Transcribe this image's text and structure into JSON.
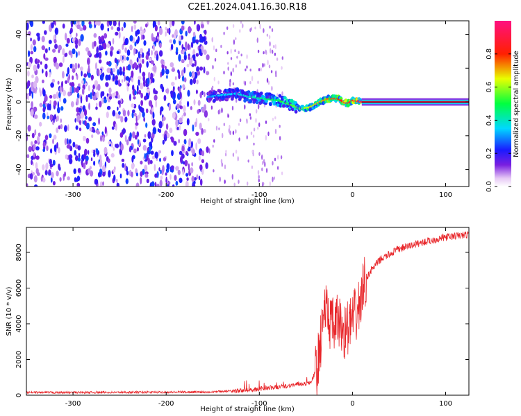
{
  "title": "C2E1.2024.041.16.30.R18",
  "colors": {
    "line": "#e8262a",
    "noise": "#6a1bd6",
    "axis": "#000000"
  },
  "chart_data": [
    {
      "type": "heatmap",
      "title": "C2E1.2024.041.16.30.R18",
      "xlabel": "Height of straight line (km)",
      "ylabel": "Frequency (Hz)",
      "xlim": [
        -350,
        125
      ],
      "ylim": [
        -50,
        48
      ],
      "xticks": [
        -300,
        -200,
        -100,
        0,
        100
      ],
      "yticks": [
        -40,
        -20,
        0,
        20,
        40
      ],
      "colorbar": {
        "label": "Normalized spectral amplitude",
        "range": [
          0,
          1
        ],
        "ticks": [
          "0.0",
          "0.2",
          "0.4",
          "0.6",
          "0.8"
        ],
        "colormap": "white-violet-blue-cyan-green-yellow-red-magenta"
      },
      "signal_track": {
        "x": [
          -155,
          -140,
          -125,
          -110,
          -95,
          -80,
          -65,
          -55,
          -45,
          -35,
          -25,
          -15,
          -10,
          -5,
          0,
          10,
          125
        ],
        "freq": [
          3,
          4,
          5,
          3,
          2,
          1,
          -2,
          -4,
          -3,
          0,
          2,
          2,
          0,
          -1,
          1,
          0,
          0
        ],
        "amplitude": [
          0.3,
          0.35,
          0.35,
          0.4,
          0.45,
          0.5,
          0.55,
          0.6,
          0.65,
          0.7,
          0.75,
          0.8,
          0.85,
          0.85,
          0.9,
          0.9,
          0.9
        ]
      },
      "noise_region": {
        "x_range": [
          -350,
          -155
        ],
        "sparse_until": -75
      }
    },
    {
      "type": "line",
      "xlabel": "Height of straight line (km)",
      "ylabel": "SNR (10 * v/v)",
      "xlim": [
        -350,
        125
      ],
      "ylim": [
        0,
        9400
      ],
      "xticks": [
        -300,
        -200,
        -100,
        0,
        100
      ],
      "yticks": [
        0,
        2000,
        4000,
        6000,
        8000
      ],
      "series": [
        {
          "x": [
            -350,
            -250,
            -160,
            -120,
            -100,
            -80,
            -60,
            -45,
            -38,
            -33,
            -30,
            -25,
            -20,
            -15,
            -10,
            -5,
            0,
            5,
            10,
            13,
            20,
            30,
            50,
            70,
            100,
            125
          ],
          "values": [
            150,
            160,
            180,
            250,
            350,
            450,
            600,
            700,
            1500,
            3500,
            5000,
            4200,
            3800,
            4200,
            3500,
            3800,
            4200,
            4600,
            5500,
            6400,
            7000,
            7600,
            8200,
            8500,
            8850,
            9000
          ]
        }
      ]
    }
  ]
}
